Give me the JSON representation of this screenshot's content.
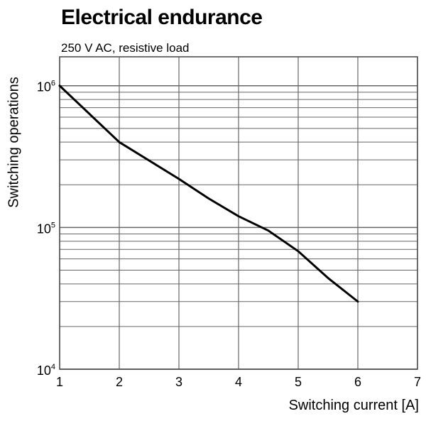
{
  "chart_data": {
    "type": "line",
    "title": "Electrical endurance",
    "subtitle": "250 V AC, resistive load",
    "xlabel": "Switching current [A]",
    "ylabel": "Switching operations",
    "x_ticks": [
      "1",
      "2",
      "3",
      "4",
      "5",
      "6",
      "7"
    ],
    "y_ticks": [
      {
        "value": 10000,
        "base": "10",
        "exp": "4"
      },
      {
        "value": 100000,
        "base": "10",
        "exp": "5"
      },
      {
        "value": 1000000,
        "base": "10",
        "exp": "6"
      }
    ],
    "xlim": [
      1,
      7
    ],
    "ylim": [
      10000,
      1600000
    ],
    "y_scale": "log",
    "grid": true,
    "series": [
      {
        "color": "#000000",
        "x": [
          1,
          2,
          3,
          3.5,
          4,
          4.5,
          5,
          5.5,
          6
        ],
        "y": [
          1000000,
          400000,
          220000,
          160000,
          120000,
          95000,
          68000,
          44000,
          30000
        ]
      }
    ]
  }
}
